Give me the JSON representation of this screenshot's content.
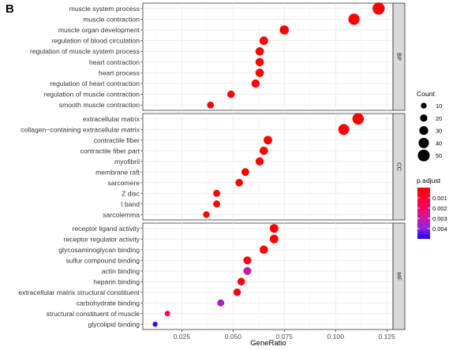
{
  "panel_tag": "B",
  "chart_data": {
    "type": "scatter",
    "xlabel": "GeneRatio",
    "xlim": [
      0.006,
      0.128
    ],
    "xticks": [
      0.025,
      0.05,
      0.075,
      0.1,
      0.125
    ],
    "xtick_labels": [
      "0.025",
      "0.050",
      "0.075",
      "0.100",
      "0.125"
    ],
    "grid": true,
    "colors": {
      "low_padj": "#ff0000",
      "high_padj": "#2200ff",
      "panel_bg": "#ffffff",
      "grid": "#ebebeb",
      "strip_bg": "#d9d9d9"
    },
    "facets": [
      {
        "label": "BP",
        "terms": [
          {
            "term": "muscle system process",
            "x": 0.121,
            "count": 52,
            "padj": 1e-05
          },
          {
            "term": "muscle contraction",
            "x": 0.109,
            "count": 46,
            "padj": 1e-05
          },
          {
            "term": "muscle organ development",
            "x": 0.075,
            "count": 32,
            "padj": 2e-05
          },
          {
            "term": "regulation of blood circulation",
            "x": 0.065,
            "count": 28,
            "padj": 3e-05
          },
          {
            "term": "regulation of muscle system process",
            "x": 0.063,
            "count": 27,
            "padj": 3e-05
          },
          {
            "term": "heart contraction",
            "x": 0.063,
            "count": 27,
            "padj": 3e-05
          },
          {
            "term": "heart process",
            "x": 0.063,
            "count": 27,
            "padj": 3e-05
          },
          {
            "term": "regulation of heart contraction",
            "x": 0.061,
            "count": 26,
            "padj": 4e-05
          },
          {
            "term": "regulation of muscle contraction",
            "x": 0.049,
            "count": 21,
            "padj": 6e-05
          },
          {
            "term": "smooth muscle contraction",
            "x": 0.039,
            "count": 17,
            "padj": 8e-05
          }
        ]
      },
      {
        "label": "CC",
        "terms": [
          {
            "term": "extracellular matrix",
            "x": 0.111,
            "count": 47,
            "padj": 1e-05
          },
          {
            "term": "collagen−containing extracellular matrix",
            "x": 0.104,
            "count": 44,
            "padj": 1e-05
          },
          {
            "term": "contractile fiber",
            "x": 0.067,
            "count": 28,
            "padj": 3e-05
          },
          {
            "term": "contractile fiber part",
            "x": 0.065,
            "count": 27,
            "padj": 3e-05
          },
          {
            "term": "myofibril",
            "x": 0.063,
            "count": 26,
            "padj": 4e-05
          },
          {
            "term": "membrane raft",
            "x": 0.056,
            "count": 23,
            "padj": 5e-05
          },
          {
            "term": "sarcomere",
            "x": 0.053,
            "count": 22,
            "padj": 5e-05
          },
          {
            "term": "Z disc",
            "x": 0.042,
            "count": 18,
            "padj": 7e-05
          },
          {
            "term": "I band",
            "x": 0.042,
            "count": 18,
            "padj": 7e-05
          },
          {
            "term": "sarcolemma",
            "x": 0.037,
            "count": 16,
            "padj": 8e-05
          }
        ]
      },
      {
        "label": "MF",
        "terms": [
          {
            "term": "receptor ligand activity",
            "x": 0.07,
            "count": 29,
            "padj": 0.0001
          },
          {
            "term": "receptor regulator activity",
            "x": 0.07,
            "count": 29,
            "padj": 0.0001
          },
          {
            "term": "glycosaminoglycan binding",
            "x": 0.065,
            "count": 27,
            "padj": 0.0001
          },
          {
            "term": "sulfur compound binding",
            "x": 0.057,
            "count": 24,
            "padj": 0.0002
          },
          {
            "term": "actin binding",
            "x": 0.057,
            "count": 24,
            "padj": 0.003
          },
          {
            "term": "heparin binding",
            "x": 0.054,
            "count": 22,
            "padj": 0.0002
          },
          {
            "term": "extracellular matrix structural constituent",
            "x": 0.052,
            "count": 21,
            "padj": 0.0002
          },
          {
            "term": "carbohydrate binding",
            "x": 0.044,
            "count": 18,
            "padj": 0.0035
          },
          {
            "term": "structural constituent of muscle",
            "x": 0.018,
            "count": 8,
            "padj": 0.0014
          },
          {
            "term": "glycolipid binding",
            "x": 0.012,
            "count": 5,
            "padj": 0.0048
          }
        ]
      }
    ],
    "size_legend": {
      "title": "Count",
      "values": [
        10,
        20,
        30,
        40,
        50
      ],
      "labels": [
        "10",
        "20",
        "30",
        "40",
        "50"
      ]
    },
    "color_legend": {
      "title": "p.adjust",
      "range": [
        0,
        0.005
      ],
      "ticks": [
        0.001,
        0.002,
        0.003,
        0.004
      ],
      "tick_labels": [
        "0.001",
        "0.002",
        "0.003",
        "0.004"
      ]
    },
    "legend_position": "right"
  }
}
